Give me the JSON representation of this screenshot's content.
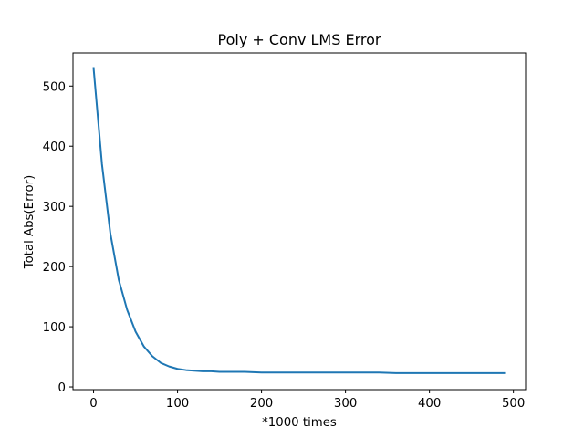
{
  "chart_data": {
    "type": "line",
    "title": "Poly + Conv LMS Error",
    "xlabel": "*1000 times",
    "ylabel": "Total Abs(Error)",
    "xlim": [
      -24.5,
      514.5
    ],
    "ylim": [
      -4.5,
      555.0
    ],
    "x_ticks": [
      0,
      100,
      200,
      300,
      400,
      500
    ],
    "x_tick_labels": [
      "0",
      "100",
      "200",
      "300",
      "400",
      "500"
    ],
    "y_ticks": [
      0,
      100,
      200,
      300,
      400,
      500
    ],
    "y_tick_labels": [
      "0",
      "100",
      "200",
      "300",
      "400",
      "500"
    ],
    "grid": false,
    "legend": "none",
    "series": [
      {
        "color": "#1f77b4",
        "x": [
          0,
          10,
          20,
          30,
          40,
          50,
          60,
          70,
          80,
          90,
          100,
          110,
          120,
          130,
          140,
          150,
          160,
          180,
          200,
          220,
          240,
          260,
          280,
          300,
          320,
          340,
          360,
          380,
          400,
          420,
          440,
          460,
          480,
          489
        ],
        "y": [
          530,
          370,
          255,
          178,
          128,
          92,
          67,
          51,
          40,
          34,
          30,
          28,
          27,
          26,
          26,
          25,
          25,
          25,
          24,
          24,
          24,
          24,
          24,
          24,
          24,
          24,
          23,
          23,
          23,
          23,
          23,
          23,
          23,
          23
        ]
      }
    ]
  }
}
